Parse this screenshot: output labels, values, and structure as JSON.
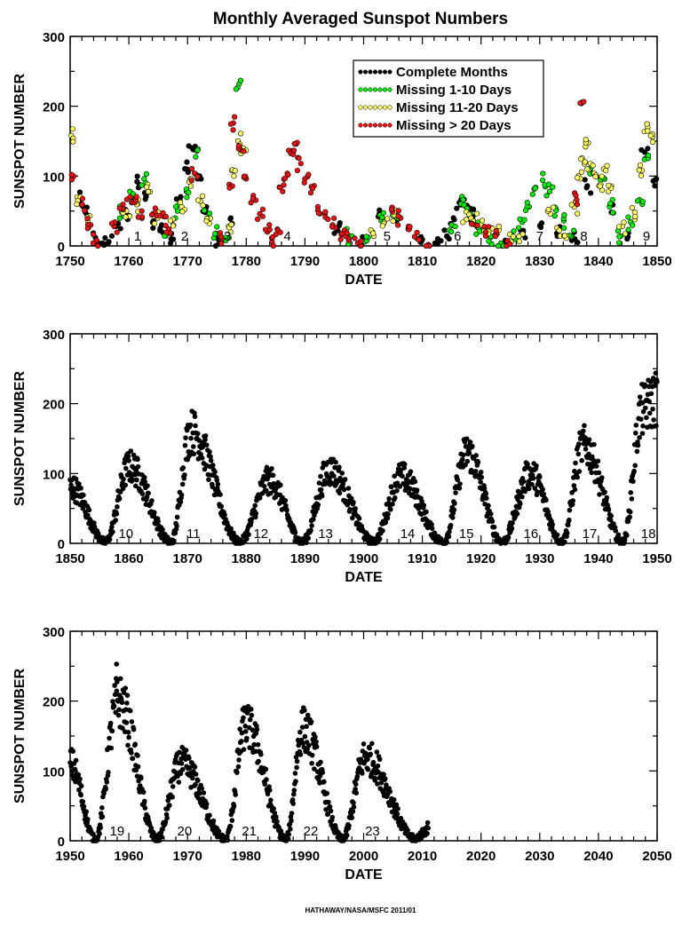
{
  "chart_data": [
    {
      "type": "scatter",
      "title": "Monthly Averaged Sunspot Numbers",
      "xlabel": "DATE",
      "ylabel": "SUNSPOT NUMBER",
      "xlim": [
        1750,
        1850
      ],
      "ylim": [
        0,
        300
      ],
      "xticks": [
        1750,
        1760,
        1770,
        1780,
        1790,
        1800,
        1810,
        1820,
        1830,
        1840,
        1850
      ],
      "yticks": [
        0,
        100,
        200,
        300
      ],
      "legend_position": "top-right",
      "legend": [
        "Complete Months",
        "Missing 1-10 Days",
        "Missing 11-20 Days",
        "Missing > 20 Days"
      ],
      "colors": {
        "complete": "#000000",
        "missing_1_10": "#00ee00",
        "missing_11_20": "#ffff66",
        "missing_over_20": "#ee1111"
      },
      "cycles": [
        {
          "label": "1",
          "x": 1761.5
        },
        {
          "label": "2",
          "x": 1769.5
        },
        {
          "label": "3",
          "x": 1776.8
        },
        {
          "label": "4",
          "x": 1787.0
        },
        {
          "label": "5",
          "x": 1804.0
        },
        {
          "label": "6",
          "x": 1816.0
        },
        {
          "label": "7",
          "x": 1830.0
        },
        {
          "label": "8",
          "x": 1837.5
        },
        {
          "label": "9",
          "x": 1848.2
        }
      ],
      "series": [
        {
          "name": "Complete Months",
          "status": "complete",
          "x": [
            1751.5,
            1752.6,
            1754.3,
            1755.5,
            1756.6,
            1758.2,
            1759.5,
            1761.4,
            1762.7,
            1764.2,
            1765.6,
            1767.2,
            1768.7,
            1769.9,
            1770.8,
            1771.7,
            1773.0,
            1775.3,
            1777.6,
            1795.6,
            1799.7,
            1802.5,
            1805.4,
            1810.0,
            1812.6,
            1814.2,
            1815.3,
            1816.3,
            1817.6,
            1818.6,
            1819.7,
            1823.9,
            1827.2,
            1830.1,
            1832.9,
            1836.0,
            1838.1,
            1842.2,
            1844.9,
            1847.9,
            1849.6
          ],
          "y": [
            66,
            48,
            12,
            4,
            6,
            32,
            44,
            92,
            76,
            36,
            30,
            10,
            66,
            110,
            140,
            96,
            48,
            3,
            32,
            22,
            5,
            42,
            44,
            9,
            3,
            14,
            40,
            62,
            58,
            42,
            26,
            4,
            22,
            30,
            18,
            10,
            86,
            48,
            10,
            134,
            86
          ]
        },
        {
          "name": "Missing 1-10 Days",
          "status": "missing_1_10",
          "x": [
            1758.8,
            1760.4,
            1762.6,
            1766.6,
            1768.3,
            1769.8,
            1771.6,
            1773.4,
            1774.8,
            1776.5,
            1778.8,
            1797.6,
            1800.2,
            1802.8,
            1805.5,
            1815.0,
            1816.6,
            1818.2,
            1819.6,
            1821.6,
            1823.4,
            1825.6,
            1827.0,
            1828.2,
            1829.3,
            1830.5,
            1831.7,
            1832.8,
            1834.1,
            1835.5,
            1838.8,
            1840.5,
            1841.9,
            1843.8,
            1845.5,
            1847.0,
            1848.2
          ],
          "y": [
            48,
            70,
            96,
            18,
            50,
            78,
            136,
            40,
            18,
            8,
            232,
            14,
            6,
            44,
            40,
            30,
            60,
            46,
            26,
            12,
            4,
            12,
            34,
            56,
            84,
            94,
            78,
            52,
            36,
            14,
            104,
            96,
            56,
            14,
            34,
            66,
            126
          ]
        },
        {
          "name": "Missing 11-20 Days",
          "status": "missing_11_20",
          "x": [
            1750.2,
            1751.2,
            1753.0,
            1759.6,
            1761.5,
            1763.2,
            1764.9,
            1767.6,
            1769.0,
            1770.5,
            1772.2,
            1773.7,
            1777.0,
            1777.9,
            1778.6,
            1779.5,
            1801.5,
            1803.5,
            1805.2,
            1817.5,
            1818.7,
            1820.0,
            1821.4,
            1822.8,
            1825.0,
            1826.5,
            1831.8,
            1833.2,
            1834.6,
            1835.9,
            1836.6,
            1837.2,
            1837.8,
            1838.6,
            1839.3,
            1840.1,
            1840.9,
            1841.7,
            1844.1,
            1846.2,
            1847.4,
            1848.4,
            1849.2
          ],
          "y": [
            158,
            70,
            36,
            50,
            60,
            88,
            40,
            30,
            56,
            96,
            64,
            32,
            28,
            100,
            150,
            140,
            20,
            34,
            44,
            38,
            36,
            30,
            22,
            18,
            8,
            14,
            46,
            24,
            14,
            56,
            100,
            126,
            142,
            118,
            104,
            86,
            110,
            78,
            28,
            48,
            108,
            170,
            156
          ]
        },
        {
          "name": "Missing > 20 Days",
          "status": "missing_over_20",
          "x": [
            1750.5,
            1752.0,
            1753.5,
            1754.5,
            1757.5,
            1759.0,
            1760.2,
            1761.0,
            1762.2,
            1764.5,
            1765.9,
            1766.8,
            1771.2,
            1775.8,
            1777.1,
            1777.8,
            1779.0,
            1780.0,
            1781.2,
            1782.3,
            1783.6,
            1784.4,
            1785.3,
            1786.2,
            1787.0,
            1787.7,
            1788.5,
            1789.3,
            1790.0,
            1791.0,
            1792.2,
            1793.4,
            1794.7,
            1796.2,
            1797.5,
            1799.0,
            1804.8,
            1806.3,
            1807.6,
            1809.2,
            1811.0,
            1819.0,
            1820.8,
            1822.4,
            1824.4,
            1836.3,
            1837.1
          ],
          "y": [
            100,
            58,
            30,
            8,
            28,
            52,
            70,
            62,
            50,
            54,
            42,
            24,
            104,
            10,
            88,
            176,
            138,
            96,
            72,
            46,
            20,
            6,
            24,
            78,
            104,
            136,
            146,
            118,
            96,
            76,
            56,
            46,
            30,
            16,
            8,
            4,
            52,
            40,
            24,
            10,
            2,
            30,
            20,
            16,
            6,
            66,
            204
          ]
        }
      ]
    },
    {
      "type": "scatter",
      "xlabel": "DATE",
      "ylabel": "SUNSPOT NUMBER",
      "xlim": [
        1850,
        1950
      ],
      "ylim": [
        0,
        300
      ],
      "xticks": [
        1850,
        1860,
        1870,
        1880,
        1890,
        1900,
        1910,
        1920,
        1930,
        1940,
        1950
      ],
      "yticks": [
        0,
        100,
        200,
        300
      ],
      "cycles": [
        {
          "label": "10",
          "x": 1859.5
        },
        {
          "label": "11",
          "x": 1871.0
        },
        {
          "label": "12",
          "x": 1882.5
        },
        {
          "label": "13",
          "x": 1893.5
        },
        {
          "label": "14",
          "x": 1907.5
        },
        {
          "label": "15",
          "x": 1917.5
        },
        {
          "label": "16",
          "x": 1928.5
        },
        {
          "label": "17",
          "x": 1938.5
        },
        {
          "label": "18",
          "x": 1948.5
        }
      ],
      "series": [
        {
          "name": "Complete Months",
          "status": "complete",
          "cycle_peaks": [
            [
              1850.2,
              80
            ],
            [
              1860.1,
              110
            ],
            [
              1870.6,
              160
            ],
            [
              1883.9,
              90
            ],
            [
              1894.1,
              105
            ],
            [
              1906.4,
              95
            ],
            [
              1917.6,
              130
            ],
            [
              1928.4,
              100
            ],
            [
              1937.4,
              140
            ],
            [
              1947.5,
              190
            ]
          ],
          "cycle_minima": [
            [
              1856.0,
              2
            ],
            [
              1867.2,
              2
            ],
            [
              1878.9,
              2
            ],
            [
              1889.6,
              2
            ],
            [
              1901.7,
              2
            ],
            [
              1913.6,
              2
            ],
            [
              1923.6,
              2
            ],
            [
              1933.8,
              2
            ],
            [
              1944.2,
              2
            ]
          ],
          "max_observed": {
            "x": 1947.5,
            "y": 201
          }
        }
      ]
    },
    {
      "type": "scatter",
      "xlabel": "DATE",
      "ylabel": "SUNSPOT NUMBER",
      "xlim": [
        1950,
        2050
      ],
      "ylim": [
        0,
        300
      ],
      "xticks": [
        1950,
        1960,
        1970,
        1980,
        1990,
        2000,
        2010,
        2020,
        2030,
        2040,
        2050
      ],
      "yticks": [
        0,
        100,
        200,
        300
      ],
      "cycles": [
        {
          "label": "19",
          "x": 1958.0
        },
        {
          "label": "20",
          "x": 1969.5
        },
        {
          "label": "21",
          "x": 1980.5
        },
        {
          "label": "22",
          "x": 1991.0
        },
        {
          "label": "23",
          "x": 2001.5
        }
      ],
      "series": [
        {
          "name": "Complete Months",
          "status": "complete",
          "cycle_peaks": [
            [
              1950.0,
              110
            ],
            [
              1958.2,
              200
            ],
            [
              1968.9,
              110
            ],
            [
              1979.9,
              165
            ],
            [
              1989.6,
              160
            ],
            [
              2000.3,
              120
            ]
          ],
          "cycle_minima": [
            [
              1954.3,
              2
            ],
            [
              1964.8,
              2
            ],
            [
              1976.5,
              2
            ],
            [
              1986.8,
              2
            ],
            [
              1996.4,
              2
            ],
            [
              2008.9,
              2
            ]
          ],
          "max_observed": {
            "x": 1957.9,
            "y": 253
          },
          "x_end": 2011.0
        }
      ]
    }
  ],
  "credit": "HATHAWAY/NASA/MSFC 2011/01"
}
